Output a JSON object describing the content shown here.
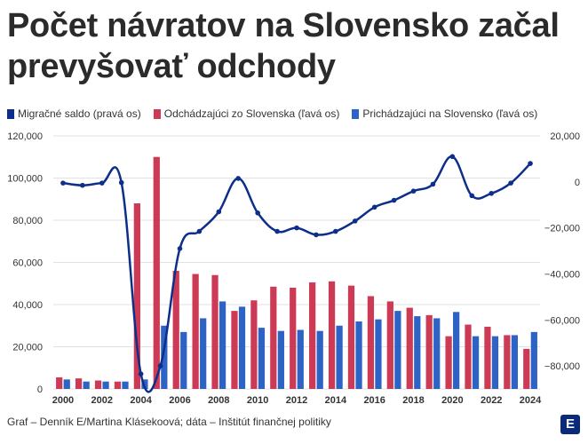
{
  "title": "Počet návratov na Slovensko začal prevyšovať odchody",
  "legend": {
    "saldo": "Migračné saldo (pravá os)",
    "odchody": "Odchádzajúci zo Slovenska (ľavá os)",
    "prichody": "Prichádzajúci na Slovensko (ľavá os)"
  },
  "footer": "Graf – Denník E/Martina Klásekoová; dáta – Inštitút finančnej politiky",
  "logo": "E",
  "colors": {
    "saldo": "#0d2f8a",
    "odchody": "#cc3a55",
    "prichody": "#2d63c4",
    "grid": "#e2e2e2"
  },
  "chart_data": {
    "type": "bar",
    "categories": [
      "2000",
      "2001",
      "2002",
      "2003",
      "2004",
      "2005",
      "2006",
      "2007",
      "2008",
      "2009",
      "2010",
      "2011",
      "2012",
      "2013",
      "2014",
      "2015",
      "2016",
      "2017",
      "2018",
      "2019",
      "2020",
      "2021",
      "2022",
      "2023",
      "2024"
    ],
    "x_tick_labels": [
      "2000",
      "2002",
      "2004",
      "2006",
      "2008",
      "2010",
      "2012",
      "2014",
      "2016",
      "2018",
      "2020",
      "2022",
      "2024"
    ],
    "series": [
      {
        "name": "Odchádzajúci zo Slovenska (ľavá os)",
        "axis": "left",
        "type": "bar",
        "values": [
          5500,
          5000,
          4000,
          3500,
          88000,
          110000,
          56000,
          54500,
          54000,
          37000,
          42000,
          48500,
          48000,
          50500,
          51000,
          49000,
          44000,
          41500,
          38500,
          35000,
          25000,
          30500,
          29500,
          25500,
          19000
        ]
      },
      {
        "name": "Prichádzajúci na Slovensko (ľavá os)",
        "axis": "left",
        "type": "bar",
        "values": [
          4500,
          3500,
          3500,
          3500,
          4500,
          30000,
          27000,
          33500,
          41500,
          39000,
          29000,
          27500,
          28000,
          27500,
          30000,
          32000,
          33000,
          37000,
          34500,
          33500,
          36500,
          25000,
          25000,
          25500,
          27000
        ]
      },
      {
        "name": "Migračné saldo (pravá os)",
        "axis": "right",
        "type": "line",
        "values": [
          -500,
          -1500,
          -500,
          -300,
          -83500,
          -80000,
          -29000,
          -21500,
          -13000,
          1500,
          -13500,
          -21500,
          -20000,
          -23000,
          -21500,
          -17000,
          -11000,
          -8000,
          -4000,
          -1000,
          11000,
          -6000,
          -5000,
          -500,
          8000
        ]
      }
    ],
    "ylim_left": [
      0,
      120000
    ],
    "ylim_right": [
      -90000,
      20000
    ],
    "y_left_ticks": [
      "0",
      "20,000",
      "40,000",
      "60,000",
      "80,000",
      "100,000",
      "120,000"
    ],
    "y_right_ticks": [
      "20,000",
      "0",
      "−20,000",
      "−40,000",
      "−60,000",
      "−80,000"
    ],
    "grid": true,
    "legend_position": "top-left"
  }
}
